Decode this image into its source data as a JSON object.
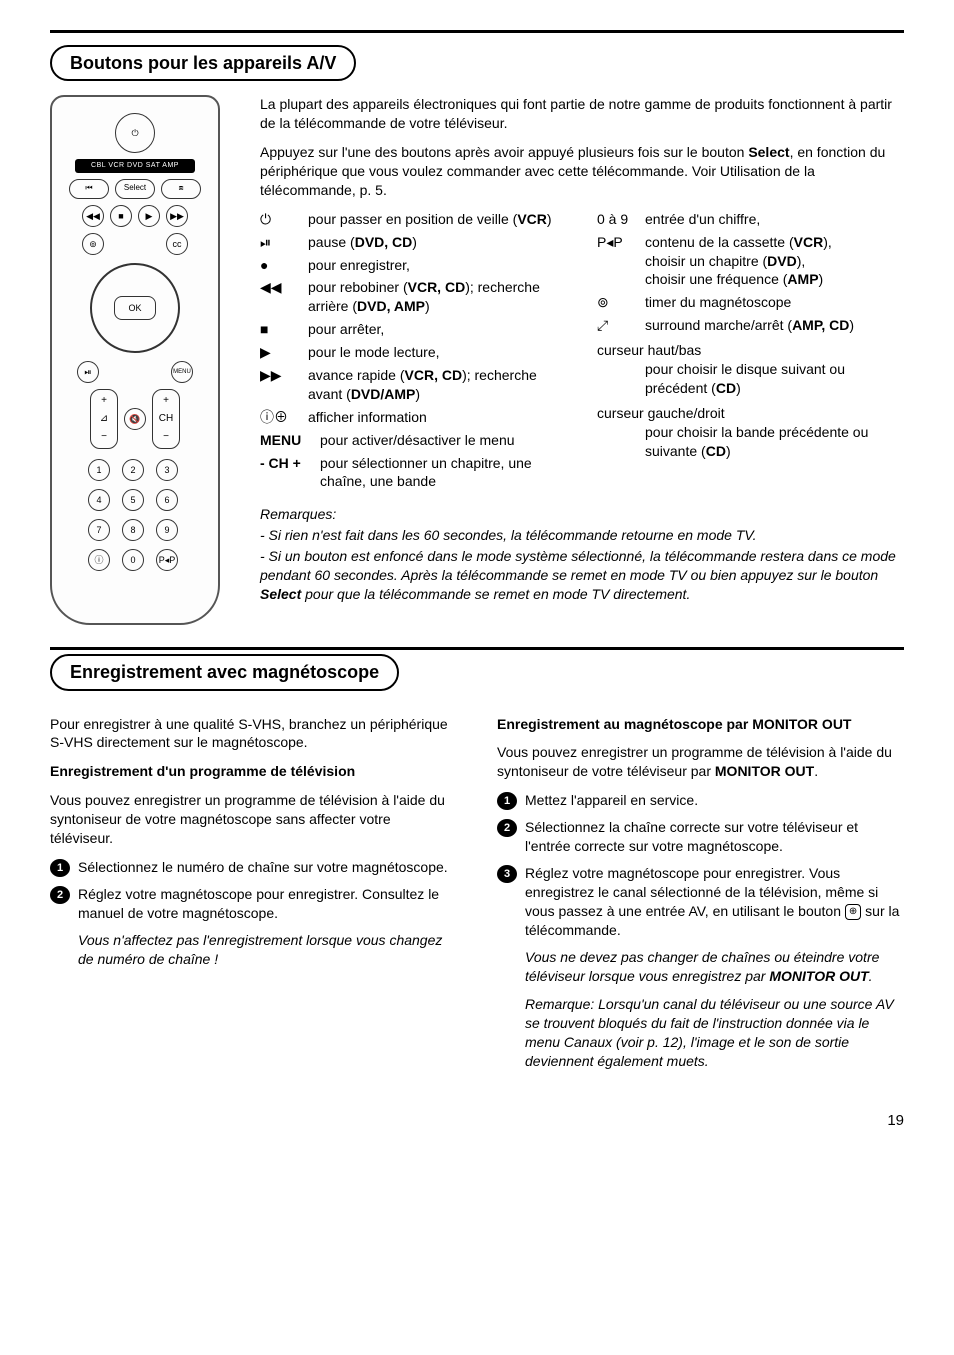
{
  "page_number": "19",
  "section1": {
    "title": "Boutons pour les appareils A/V",
    "intro1": "La plupart des appareils électroniques qui font partie de notre gamme de produits fonctionnent à partir de la télécommande de votre téléviseur.",
    "intro2_a": "Appuyez sur l'une des boutons après avoir appuyé plusieurs fois sur le bouton ",
    "intro2_b": "Select",
    "intro2_c": ", en fonction du périphérique que vous voulez commander avec cette télécommande. Voir Utilisation de la télécommande, p. 5.",
    "left": [
      {
        "sym": "⏻",
        "text_a": "pour passer en position de veille (",
        "bold": "VCR",
        "text_b": ")"
      },
      {
        "sym": "⏯",
        "text_a": "pause (",
        "bold": "DVD, CD",
        "text_b": ")"
      },
      {
        "sym": "●",
        "text_a": "pour enregistrer,",
        "bold": "",
        "text_b": ""
      },
      {
        "sym": "◀◀",
        "text_a": "pour rebobiner (",
        "bold": "VCR, CD",
        "text_b": "); recherche arrière (",
        "bold2": "DVD, AMP",
        "text_c": ")"
      },
      {
        "sym": "■",
        "text_a": "pour arrêter,",
        "bold": "",
        "text_b": ""
      },
      {
        "sym": "▶",
        "text_a": "pour le mode lecture,",
        "bold": "",
        "text_b": ""
      },
      {
        "sym": "▶▶",
        "text_a": "avance rapide (",
        "bold": "VCR, CD",
        "text_b": "); recherche avant (",
        "bold2": "DVD/AMP",
        "text_c": ")"
      },
      {
        "sym": "ⓘ⊕",
        "text_a": "afficher information",
        "bold": "",
        "text_b": ""
      },
      {
        "sym": "MENU",
        "sym_bold": true,
        "text_a": "pour activer/désactiver le menu",
        "bold": "",
        "text_b": ""
      },
      {
        "sym": "- CH +",
        "sym_bold": true,
        "text_a": "pour sélectionner un chapitre, une chaîne, une bande",
        "bold": "",
        "text_b": ""
      }
    ],
    "right": [
      {
        "sym": "0 à 9",
        "text_a": "entrée d'un chiffre,",
        "bold": "",
        "text_b": ""
      },
      {
        "sym": "P◂P",
        "text_a": "contenu de la cassette (",
        "bold": "VCR",
        "text_b": "),",
        "line2_a": "choisir un chapitre (",
        "line2_b": "DVD",
        "line2_c": "),",
        "line3_a": "choisir une fréquence (",
        "line3_b": "AMP",
        "line3_c": ")"
      },
      {
        "sym": "⊚",
        "text_a": "timer du magnétoscope",
        "bold": "",
        "text_b": ""
      },
      {
        "sym": "⤢",
        "text_a": "surround marche/arrêt (",
        "bold": "AMP, CD",
        "text_b": ")"
      },
      {
        "sym_plain": "curseur haut/bas",
        "text_a": "pour choisir le disque suivant ou précédent  (",
        "bold": "CD",
        "text_b": ")"
      },
      {
        "sym_plain": "curseur gauche/droit",
        "text_a": "pour choisir la bande précédente ou suivante (",
        "bold": "CD",
        "text_b": ")"
      }
    ],
    "remarques_label": "Remarques:",
    "rem1": "- Si rien n'est fait dans les 60 secondes, la télécommande retourne en mode TV.",
    "rem2_a": "- Si un bouton est enfoncé dans le mode système sélectionné, la télécommande restera dans ce mode pendant 60 secondes. Après la télécommande se remet en mode TV ou bien appuyez sur le bouton ",
    "rem2_b": "Select",
    "rem2_c": " pour que la télécommande se remet en mode TV directement."
  },
  "remote": {
    "strip": "CBL VCR DVD SAT AMP",
    "select": "Select",
    "ok": "OK",
    "ch": "CH",
    "menu": "MENU"
  },
  "section2": {
    "title": "Enregistrement avec magnétoscope",
    "left": {
      "p1": "Pour enregistrer à une qualité S-VHS, branchez un périphérique S-VHS directement sur le magnétoscope.",
      "h1": "Enregistrement d'un programme de télévision",
      "p2": "Vous pouvez enregistrer un programme de télévision à l'aide du syntoniseur de votre magnétoscope sans affecter votre téléviseur.",
      "s1": "Sélectionnez le numéro de chaîne sur votre magnétoscope.",
      "s2": "Réglez votre magnétoscope pour enregistrer. Consultez le manuel de votre magnétoscope.",
      "note": "Vous n'affectez pas l'enregistrement lorsque vous changez de numéro de chaîne !"
    },
    "right": {
      "h1_a": "Enregistrement au magnétoscope par ",
      "h1_b": "MONITOR OUT",
      "p1_a": "Vous pouvez enregistrer un programme de télévision à l'aide du syntoniseur de votre téléviseur par ",
      "p1_b": "MONITOR OUT",
      "p1_c": ".",
      "s1": "Mettez l'appareil en service.",
      "s2": "Sélectionnez la chaîne correcte sur votre téléviseur et l'entrée correcte sur votre magnétoscope.",
      "s3_a": "Réglez votre magnétoscope pour enregistrer. Vous enregistrez le canal sélectionné de la télévision, même si vous passez à une entrée AV, en utilisant le bouton ",
      "s3_b": " sur la télécommande.",
      "note1_a": "Vous ne devez pas changer de chaînes ou éteindre votre téléviseur lorsque vous enregistrez par ",
      "note1_b": "MONITOR OUT",
      "note1_c": ".",
      "note2": "Remarque: Lorsqu'un canal du téléviseur ou une source AV se trouvent bloqués du fait de l'instruction donnée via le menu Canaux (voir p. 12), l'image et le son de sortie deviennent également muets."
    }
  }
}
